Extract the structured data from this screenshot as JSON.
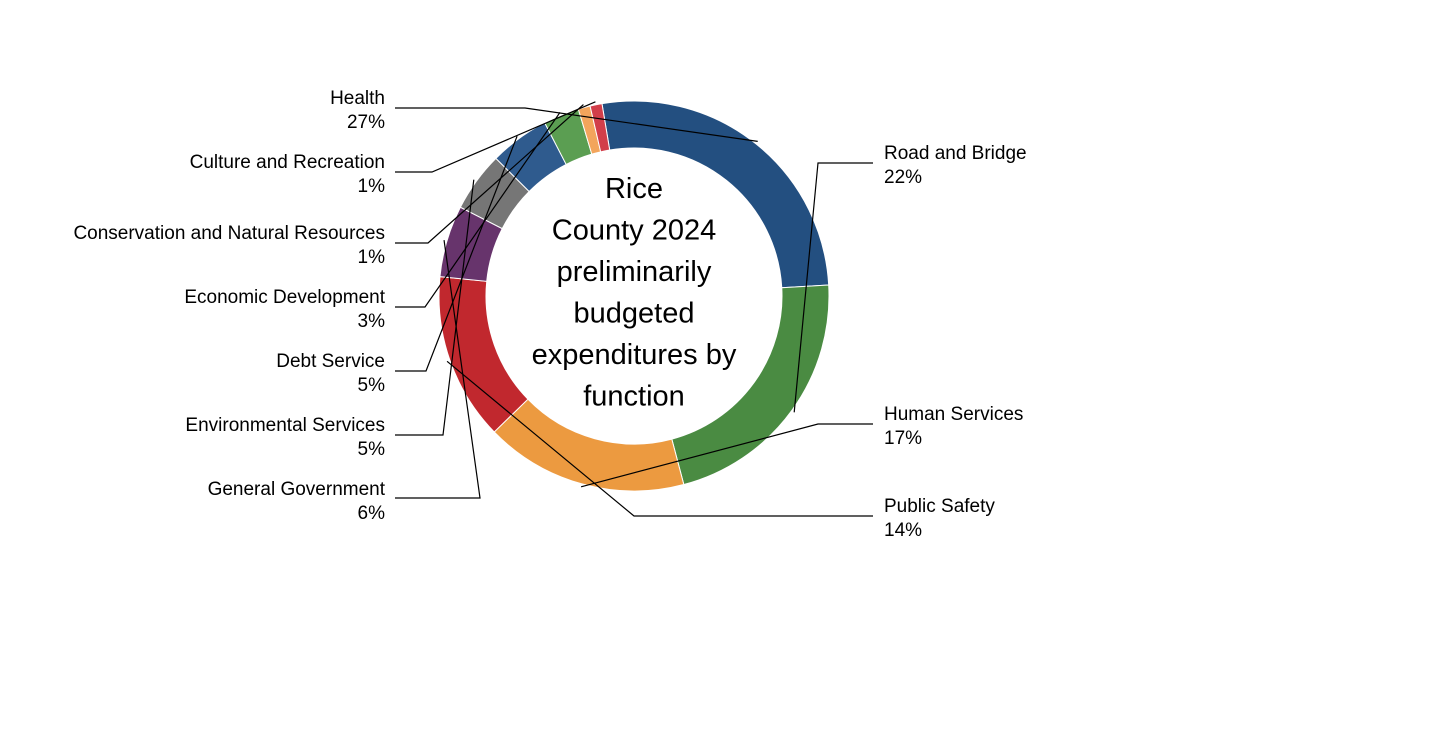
{
  "chart_data": {
    "type": "pie",
    "style": "donut",
    "title_lines": [
      "Rice",
      "County 2024",
      "preliminarily",
      "budgeted",
      "expenditures by",
      "function"
    ],
    "slices": [
      {
        "label": "Health",
        "percent_label": "27%",
        "value": 27,
        "color": "#234f80"
      },
      {
        "label": "Road and Bridge",
        "percent_label": "22%",
        "value": 22,
        "color": "#4a8b42"
      },
      {
        "label": "Human Services",
        "percent_label": "17%",
        "value": 17,
        "color": "#ec9a40"
      },
      {
        "label": "Public Safety",
        "percent_label": "14%",
        "value": 14,
        "color": "#c1282e"
      },
      {
        "label": "General Government",
        "percent_label": "6%",
        "value": 6,
        "color": "#67346c"
      },
      {
        "label": "Environmental Services",
        "percent_label": "5%",
        "value": 5,
        "color": "#767676"
      },
      {
        "label": "Debt Service",
        "percent_label": "5%",
        "value": 5,
        "color": "#2f5b8e"
      },
      {
        "label": "Economic Development",
        "percent_label": "3%",
        "value": 3,
        "color": "#5b9e52"
      },
      {
        "label": "Conservation and Natural Resources",
        "percent_label": "1%",
        "value": 1,
        "color": "#f3a55c"
      },
      {
        "label": "Culture and Recreation",
        "percent_label": "1%",
        "value": 1,
        "color": "#d23e4a"
      }
    ]
  }
}
